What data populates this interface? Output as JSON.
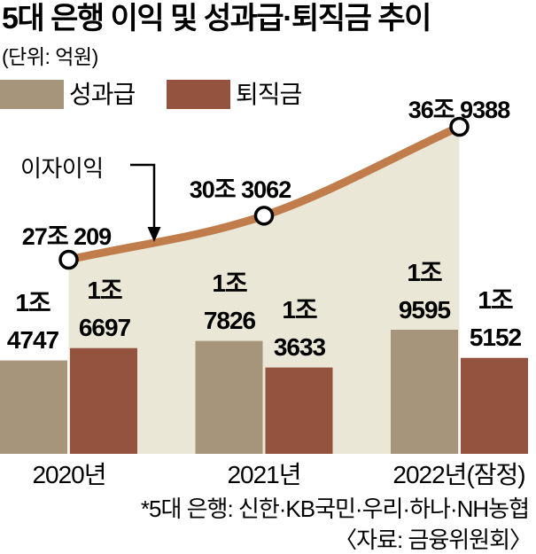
{
  "title": "5대 은행 이익 및 성과급·퇴직금 추이",
  "unit_note": "(단위: 억원)",
  "legend": {
    "bonus": {
      "label": "성과급",
      "color": "#a6947b"
    },
    "severance": {
      "label": "퇴직금",
      "color": "#94533f"
    }
  },
  "footnote": "*5대 은행: 신한·KB국민·우리·하나·NH농협",
  "source": "〈자료: 금융위원회〉",
  "colors": {
    "bonus_bar": "#a6947b",
    "severance_bar": "#94533f",
    "line": "#c07c4a",
    "area_fill": "#ebe7d6",
    "marker_fill": "#ffffff",
    "marker_stroke": "#000000",
    "text": "#000000"
  },
  "chart_data": {
    "type": "bar+line",
    "unit": "억원",
    "categories": [
      "2020년",
      "2021년",
      "2022년(잠정)"
    ],
    "series": [
      {
        "name": "성과급",
        "color": "#a6947b",
        "values": [
          14747,
          17826,
          19595
        ],
        "point_labels": [
          [
            "1조",
            "4747"
          ],
          [
            "1조",
            "7826"
          ],
          [
            "1조",
            "9595"
          ]
        ]
      },
      {
        "name": "퇴직금",
        "color": "#94533f",
        "values": [
          16697,
          13633,
          15152
        ],
        "point_labels": [
          [
            "1조",
            "6697"
          ],
          [
            "1조",
            "3633"
          ],
          [
            "1조",
            "5152"
          ]
        ]
      }
    ],
    "line_series": {
      "name": "이자이익",
      "color": "#c07c4a",
      "area_color": "#ebe7d6",
      "marker": "open-circle",
      "values": [
        270209,
        303062,
        369388
      ],
      "point_labels": [
        "27조 209",
        "30조 3062",
        "36조 9388"
      ]
    },
    "legend_position": "top-left",
    "grid": false,
    "axes_hidden": true
  }
}
